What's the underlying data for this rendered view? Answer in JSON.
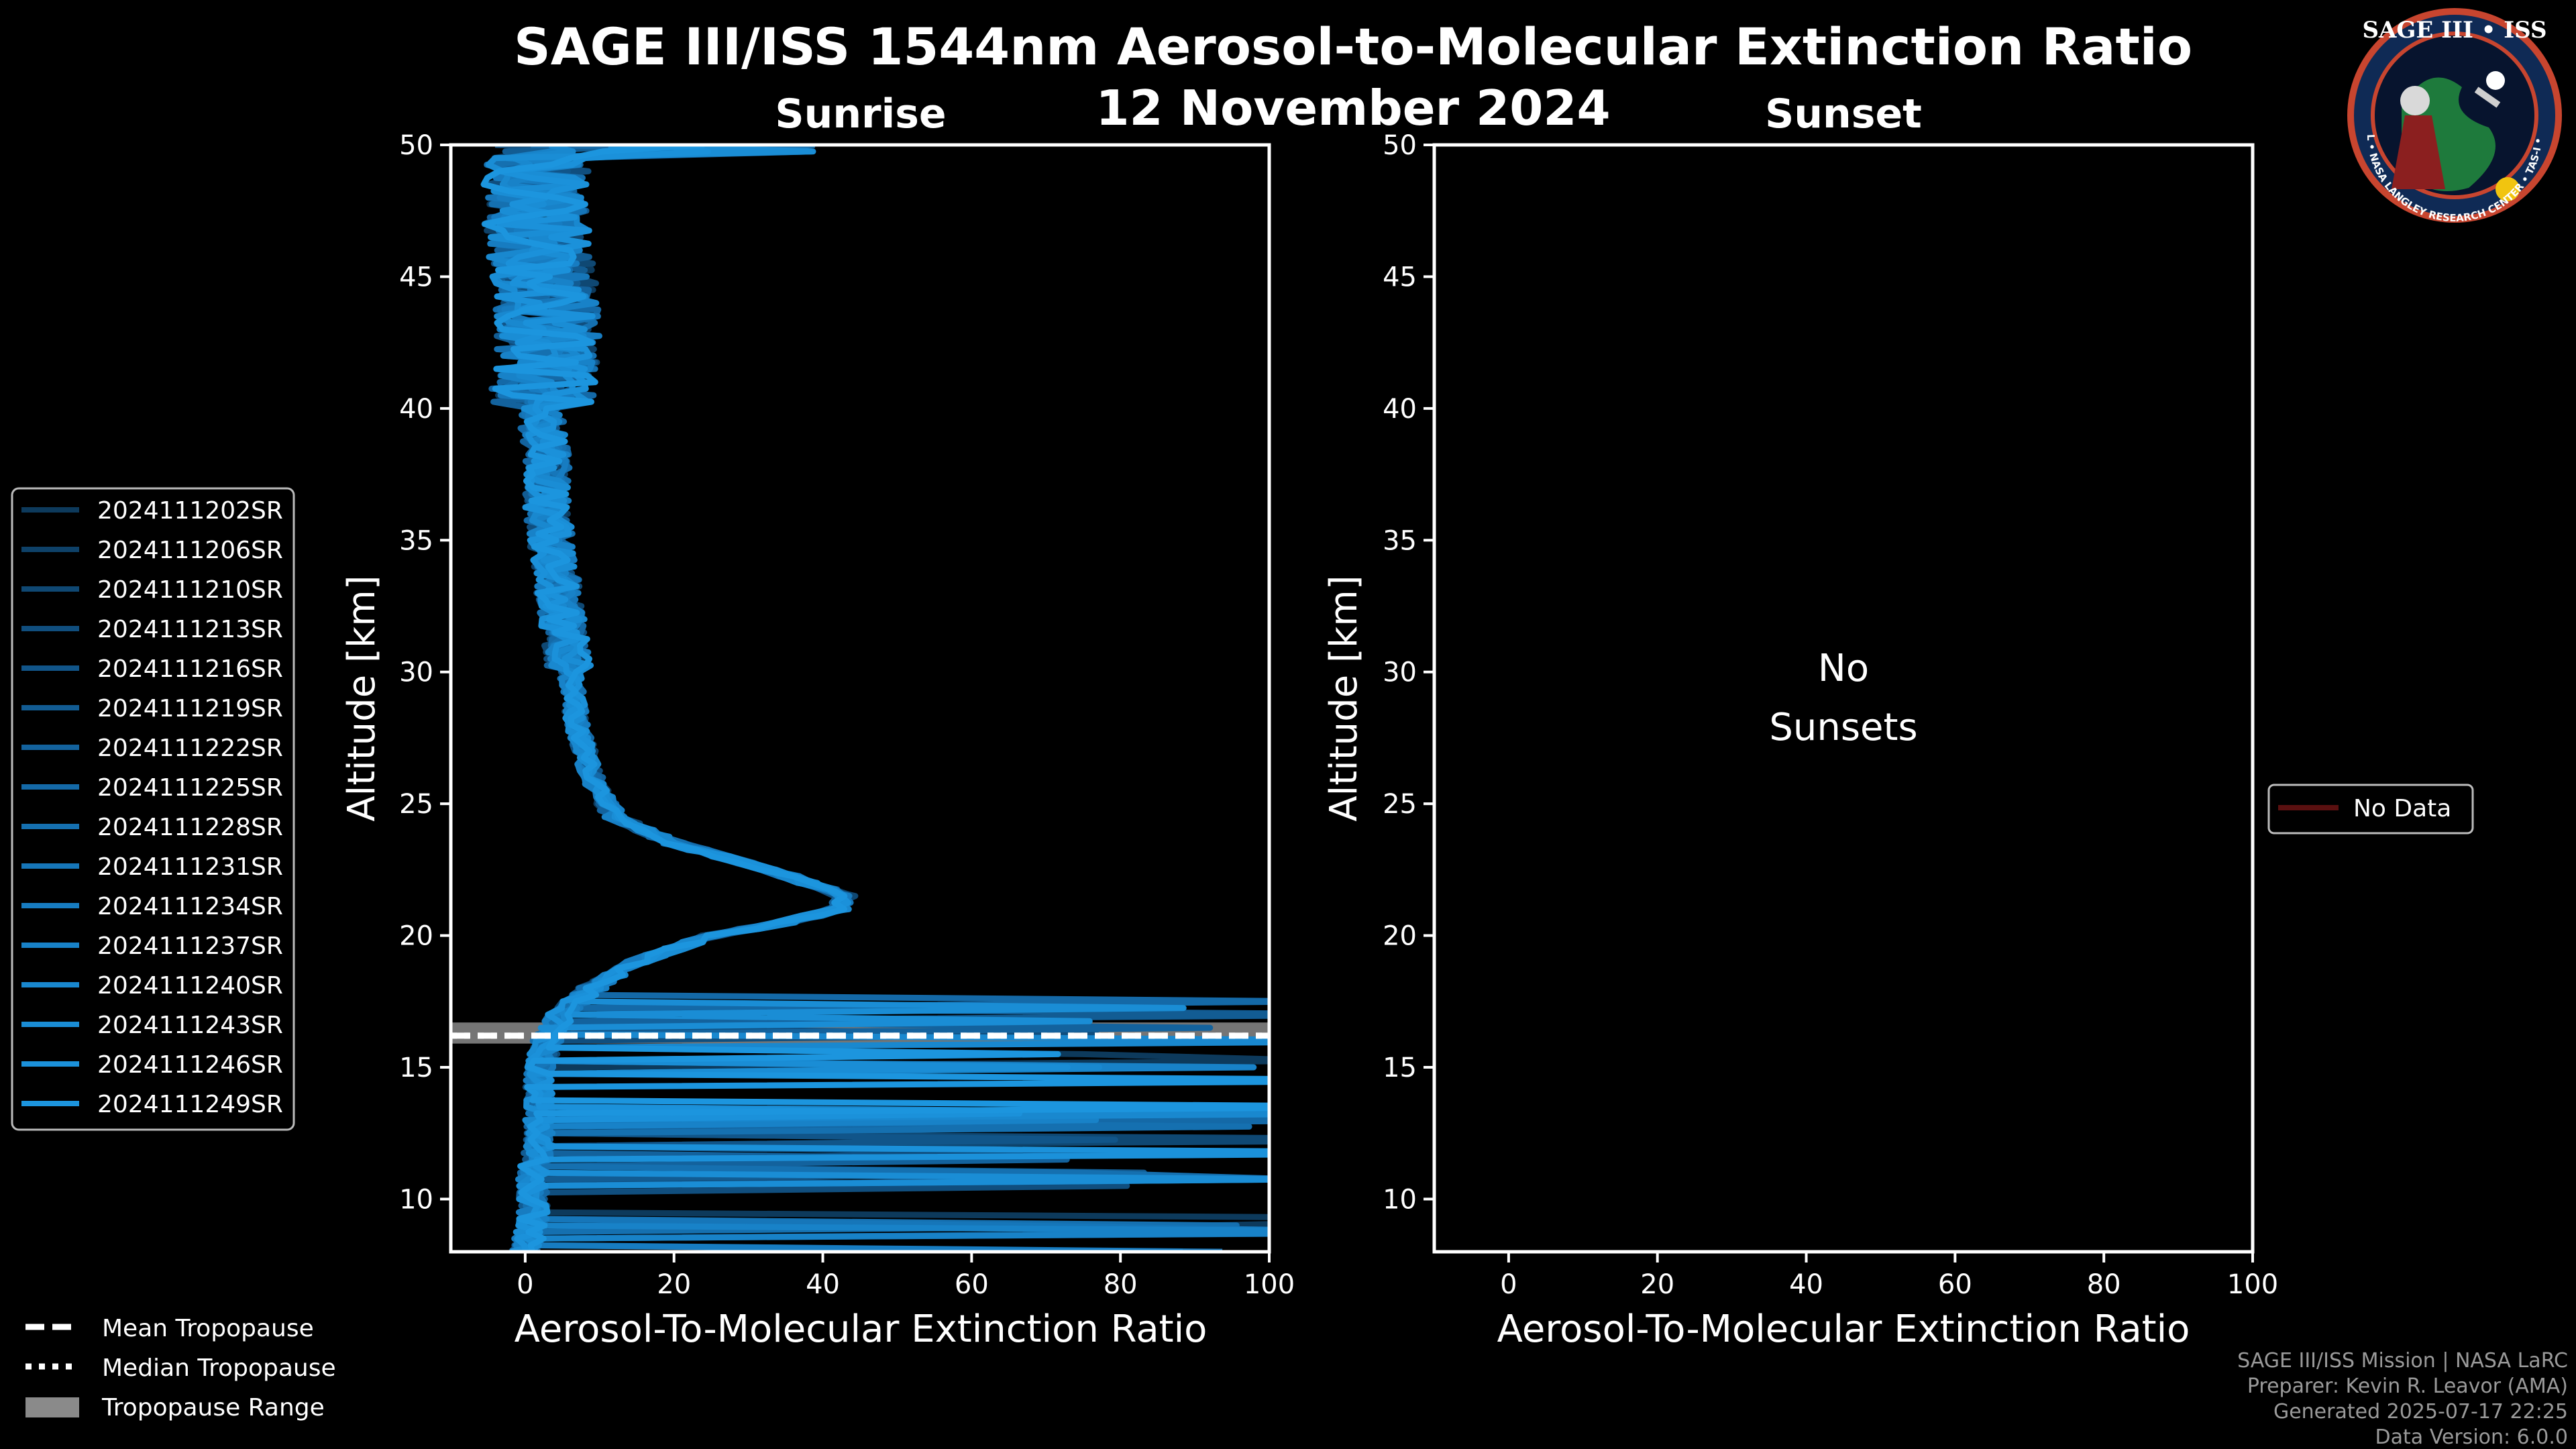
{
  "title": "SAGE III/ISS 1544nm Aerosol-to-Molecular Extinction Ratio",
  "date": "12 November 2024",
  "logo": {
    "name": "SAGE III • ISS",
    "ring_text": "BALL • NASA LANGLEY RESEARCH CENTER • TAS-I • ESA"
  },
  "colors": {
    "background": "#000000",
    "series_blue": "#1a8fd6",
    "tropopause_band": "#8a8a8a",
    "no_data": "#5a1010",
    "axis": "#ffffff"
  },
  "footer": {
    "line1": "SAGE III/ISS Mission | NASA LaRC",
    "line2": "Preparer: Kevin R. Leavor (AMA)",
    "line3": "Generated 2025-07-17 22:25",
    "line4": "Data Version: 6.0.0"
  },
  "tropopause_legend": [
    "Mean Tropopause",
    "Median Tropopause",
    "Tropopause Range"
  ],
  "chart_data": [
    {
      "type": "line",
      "title": "Sunrise",
      "xlabel": "Aerosol-To-Molecular Extinction Ratio",
      "ylabel": "Altitude [km]",
      "xlim": [
        -10,
        100
      ],
      "ylim": [
        8,
        50
      ],
      "xticks": [
        0,
        20,
        40,
        60,
        80,
        100
      ],
      "yticks": [
        10,
        15,
        20,
        25,
        30,
        35,
        40,
        45,
        50
      ],
      "tropopause": {
        "mean": 16.2,
        "median": 16.2,
        "range": [
          15.9,
          16.7
        ]
      },
      "base_profile": {
        "altitude": [
          50,
          48,
          46,
          44,
          42,
          40,
          38,
          36,
          34,
          32,
          30,
          28,
          26,
          24.5,
          23.5,
          22.5,
          21.5,
          21,
          20.5,
          20,
          19,
          18,
          17,
          16,
          15,
          14,
          13,
          12,
          11,
          10,
          9,
          8
        ],
        "ratio": [
          2,
          1,
          2,
          3,
          3,
          2,
          3,
          3,
          4,
          5,
          6,
          7,
          9,
          12,
          20,
          33,
          43,
          42,
          35,
          25,
          15,
          9,
          5,
          3,
          2,
          2,
          2,
          2,
          1,
          1,
          1,
          0
        ]
      },
      "series": [
        {
          "name": "2024111202SR",
          "values": [],
          "color": "#0d3a5c"
        },
        {
          "name": "2024111206SR",
          "values": [],
          "color": "#0e4168"
        },
        {
          "name": "2024111210SR",
          "values": [],
          "color": "#0f4873"
        },
        {
          "name": "2024111213SR",
          "values": [],
          "color": "#104e7e"
        },
        {
          "name": "2024111216SR",
          "values": [],
          "color": "#115589"
        },
        {
          "name": "2024111219SR",
          "values": [],
          "color": "#125c93"
        },
        {
          "name": "2024111222SR",
          "values": [],
          "color": "#13629d"
        },
        {
          "name": "2024111225SR",
          "values": [],
          "color": "#1469a7"
        },
        {
          "name": "2024111228SR",
          "values": [],
          "color": "#1570b0"
        },
        {
          "name": "2024111231SR",
          "values": [],
          "color": "#1676b9"
        },
        {
          "name": "2024111234SR",
          "values": [],
          "color": "#177cc1"
        },
        {
          "name": "2024111237SR",
          "values": [],
          "color": "#1882c8"
        },
        {
          "name": "2024111240SR",
          "values": [],
          "color": "#1988cf"
        },
        {
          "name": "2024111243SR",
          "values": [],
          "color": "#1a8dd5"
        },
        {
          "name": "2024111246SR",
          "values": [],
          "color": "#1b91da"
        },
        {
          "name": "2024111249SR",
          "values": [],
          "color": "#1c95de"
        }
      ]
    },
    {
      "type": "line",
      "title": "Sunset",
      "xlabel": "Aerosol-To-Molecular Extinction Ratio",
      "ylabel": "Altitude [km]",
      "xlim": [
        -10,
        100
      ],
      "ylim": [
        8,
        50
      ],
      "xticks": [
        0,
        20,
        40,
        60,
        80,
        100
      ],
      "yticks": [
        10,
        15,
        20,
        25,
        30,
        35,
        40,
        45,
        50
      ],
      "annotation": "No\nSunsets",
      "legend": [
        "No Data"
      ],
      "series": []
    }
  ]
}
